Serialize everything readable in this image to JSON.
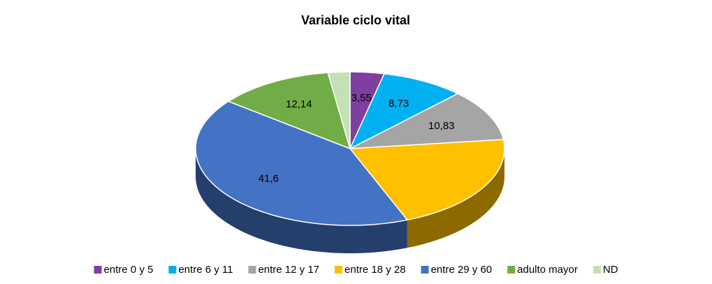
{
  "chart_data": {
    "type": "pie",
    "title": "Variable ciclo vital",
    "categories": [
      "entre 0 y 5",
      "entre 6 y 11",
      "entre 12 y 17",
      "entre 18 y 28",
      "entre 29 y 60",
      "adulto mayor",
      "ND"
    ],
    "values": [
      3.55,
      8.73,
      10.83,
      20.85,
      41.6,
      12.14,
      2.3
    ],
    "value_labels": [
      "3,55",
      "8,73",
      "10,83",
      null,
      "41,6",
      "12,14",
      null
    ],
    "colors": [
      "#7e3f9f",
      "#00b0f0",
      "#a5a5a5",
      "#ffc000",
      "#4472c4",
      "#70ad47",
      "#c5e0b4"
    ],
    "legend": "bottom"
  }
}
